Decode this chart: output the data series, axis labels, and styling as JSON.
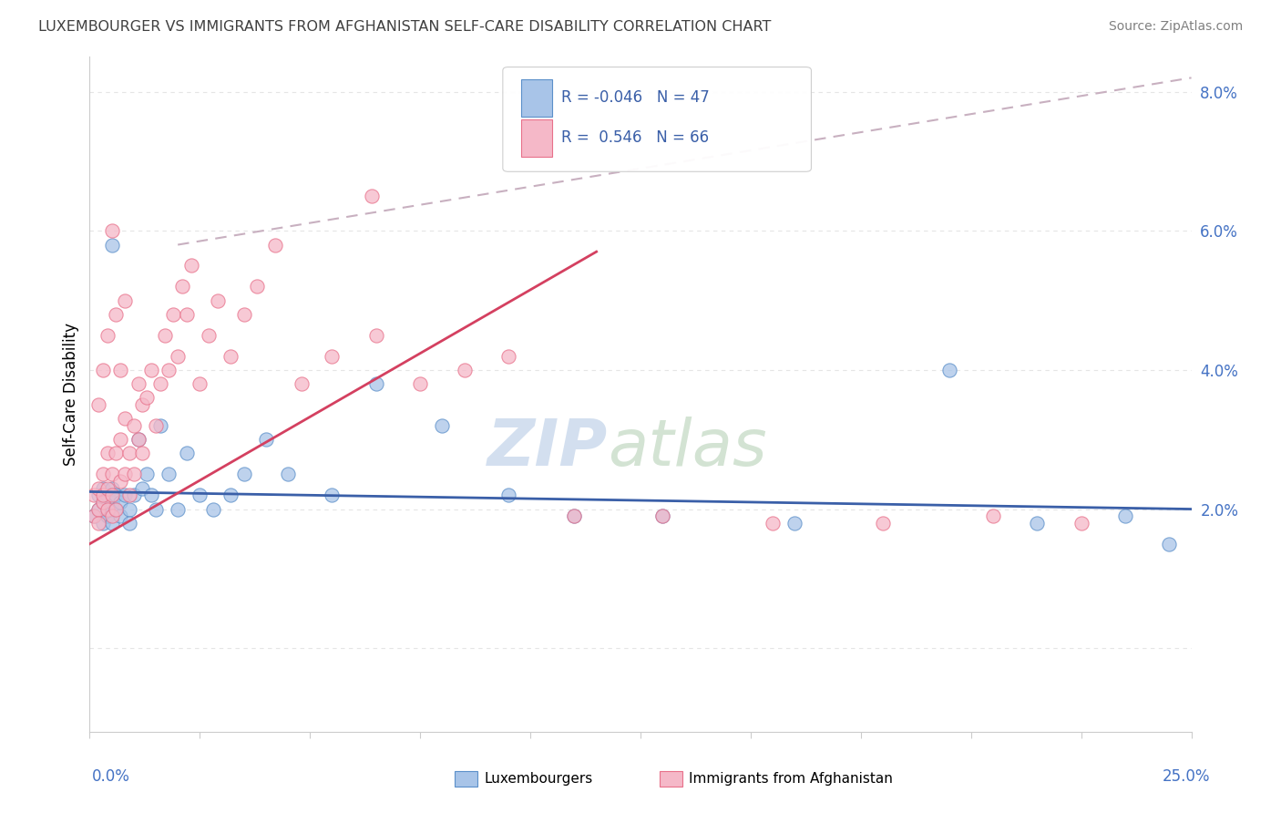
{
  "title": "LUXEMBOURGER VS IMMIGRANTS FROM AFGHANISTAN SELF-CARE DISABILITY CORRELATION CHART",
  "source": "Source: ZipAtlas.com",
  "ylabel": "Self-Care Disability",
  "xlim": [
    0.0,
    0.25
  ],
  "ylim": [
    -0.012,
    0.085
  ],
  "yticks": [
    0.0,
    0.02,
    0.04,
    0.06,
    0.08
  ],
  "ytick_labels": [
    "",
    "2.0%",
    "4.0%",
    "6.0%",
    "8.0%"
  ],
  "legend_r1": "R = -0.046",
  "legend_n1": "N = 47",
  "legend_r2": "R =  0.546",
  "legend_n2": "N = 66",
  "blue_scatter_color": "#a8c4e8",
  "blue_edge_color": "#5b8fc9",
  "pink_scatter_color": "#f5b8c8",
  "pink_edge_color": "#e8708a",
  "blue_line_color": "#3a5fa8",
  "pink_line_color": "#d44060",
  "dashed_line_color": "#c8b0c0",
  "grid_color": "#e5e5e5",
  "title_color": "#404040",
  "source_color": "#808080",
  "axis_label_color": "#4472c4",
  "watermark_zip_color": "#c8d8ec",
  "watermark_atlas_color": "#c8dcc8",
  "blue_x": [
    0.001,
    0.002,
    0.002,
    0.003,
    0.003,
    0.003,
    0.004,
    0.004,
    0.004,
    0.005,
    0.005,
    0.005,
    0.006,
    0.006,
    0.007,
    0.007,
    0.008,
    0.009,
    0.009,
    0.01,
    0.011,
    0.012,
    0.013,
    0.014,
    0.015,
    0.016,
    0.018,
    0.02,
    0.022,
    0.025,
    0.028,
    0.032,
    0.035,
    0.04,
    0.045,
    0.055,
    0.065,
    0.08,
    0.095,
    0.11,
    0.13,
    0.16,
    0.195,
    0.215,
    0.235,
    0.245,
    0.005
  ],
  "blue_y": [
    0.019,
    0.02,
    0.022,
    0.018,
    0.021,
    0.023,
    0.019,
    0.022,
    0.02,
    0.021,
    0.018,
    0.023,
    0.02,
    0.022,
    0.019,
    0.021,
    0.022,
    0.02,
    0.018,
    0.022,
    0.03,
    0.023,
    0.025,
    0.022,
    0.02,
    0.032,
    0.025,
    0.02,
    0.028,
    0.022,
    0.02,
    0.022,
    0.025,
    0.03,
    0.025,
    0.022,
    0.038,
    0.032,
    0.022,
    0.019,
    0.019,
    0.018,
    0.04,
    0.018,
    0.019,
    0.015,
    0.058
  ],
  "pink_x": [
    0.001,
    0.001,
    0.002,
    0.002,
    0.002,
    0.003,
    0.003,
    0.003,
    0.004,
    0.004,
    0.004,
    0.005,
    0.005,
    0.005,
    0.006,
    0.006,
    0.007,
    0.007,
    0.008,
    0.008,
    0.009,
    0.009,
    0.01,
    0.01,
    0.011,
    0.011,
    0.012,
    0.012,
    0.013,
    0.014,
    0.015,
    0.016,
    0.017,
    0.018,
    0.019,
    0.02,
    0.021,
    0.022,
    0.023,
    0.025,
    0.027,
    0.029,
    0.032,
    0.035,
    0.038,
    0.042,
    0.048,
    0.055,
    0.065,
    0.075,
    0.085,
    0.095,
    0.11,
    0.13,
    0.155,
    0.18,
    0.205,
    0.225,
    0.002,
    0.003,
    0.004,
    0.005,
    0.006,
    0.007,
    0.008,
    0.064
  ],
  "pink_y": [
    0.019,
    0.022,
    0.02,
    0.023,
    0.018,
    0.021,
    0.022,
    0.025,
    0.02,
    0.023,
    0.028,
    0.019,
    0.022,
    0.025,
    0.02,
    0.028,
    0.024,
    0.03,
    0.025,
    0.033,
    0.022,
    0.028,
    0.025,
    0.032,
    0.03,
    0.038,
    0.028,
    0.035,
    0.036,
    0.04,
    0.032,
    0.038,
    0.045,
    0.04,
    0.048,
    0.042,
    0.052,
    0.048,
    0.055,
    0.038,
    0.045,
    0.05,
    0.042,
    0.048,
    0.052,
    0.058,
    0.038,
    0.042,
    0.045,
    0.038,
    0.04,
    0.042,
    0.019,
    0.019,
    0.018,
    0.018,
    0.019,
    0.018,
    0.035,
    0.04,
    0.045,
    0.06,
    0.048,
    0.04,
    0.05,
    0.065
  ]
}
